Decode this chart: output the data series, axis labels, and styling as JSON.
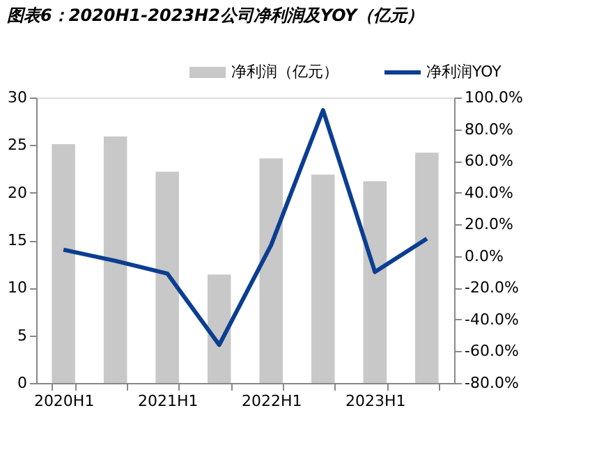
{
  "chart_data": {
    "type": "bar",
    "title": "图表6：2020H1-2023H2公司净利润及YOY（亿元）",
    "categories": [
      "2020H1",
      null,
      "2021H1",
      null,
      "2022H1",
      null,
      "2023H1",
      null
    ],
    "series": [
      {
        "name": "净利润（亿元）",
        "color": "#c8c8c8",
        "values": [
          25.1,
          25.9,
          22.2,
          11.4,
          23.6,
          21.9,
          21.2,
          24.2
        ]
      },
      {
        "name": "净利润YOY",
        "type": "line",
        "axis": "y2",
        "color": "#0b3e91",
        "values": [
          4,
          -3,
          -11,
          -56,
          7,
          92,
          -10,
          11
        ]
      }
    ],
    "ylim": [
      0,
      30
    ],
    "yticks": [
      0,
      5,
      10,
      15,
      20,
      25,
      30
    ],
    "y2lim": [
      -80,
      100
    ],
    "y2ticks": [
      {
        "value": -80,
        "label": "-80.0%"
      },
      {
        "value": -60,
        "label": "-60.0%"
      },
      {
        "value": -40,
        "label": "-40.0%"
      },
      {
        "value": -20,
        "label": "-20.0%"
      },
      {
        "value": 0,
        "label": "0.0%"
      },
      {
        "value": 20,
        "label": "20.0%"
      },
      {
        "value": 40,
        "label": "40.0%"
      },
      {
        "value": 60,
        "label": "60.0%"
      },
      {
        "value": 80,
        "label": "80.0%"
      },
      {
        "value": 100,
        "label": "100.0%"
      }
    ],
    "legend": "top",
    "grid": false
  }
}
